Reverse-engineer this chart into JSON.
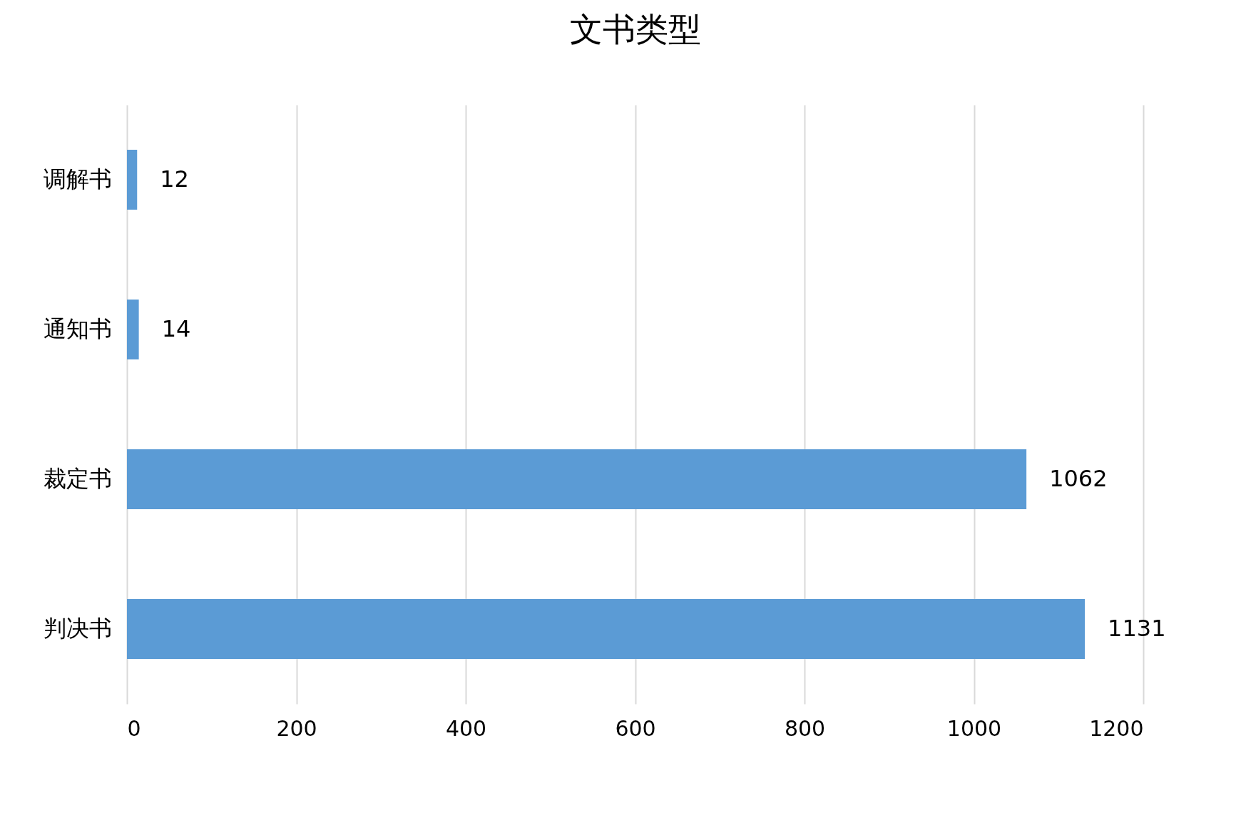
{
  "chart_data": {
    "type": "bar",
    "title": "文书类型",
    "orientation": "horizontal",
    "categories": [
      "调解书",
      "通知书",
      "裁定书",
      "判决书"
    ],
    "values": [
      12,
      14,
      1062,
      1131
    ],
    "color": "#5b9bd5",
    "xlim": [
      0,
      1200
    ],
    "xticks": [
      0,
      200,
      400,
      600,
      800,
      1000,
      1200
    ],
    "grid": "x",
    "data_labels": true
  }
}
